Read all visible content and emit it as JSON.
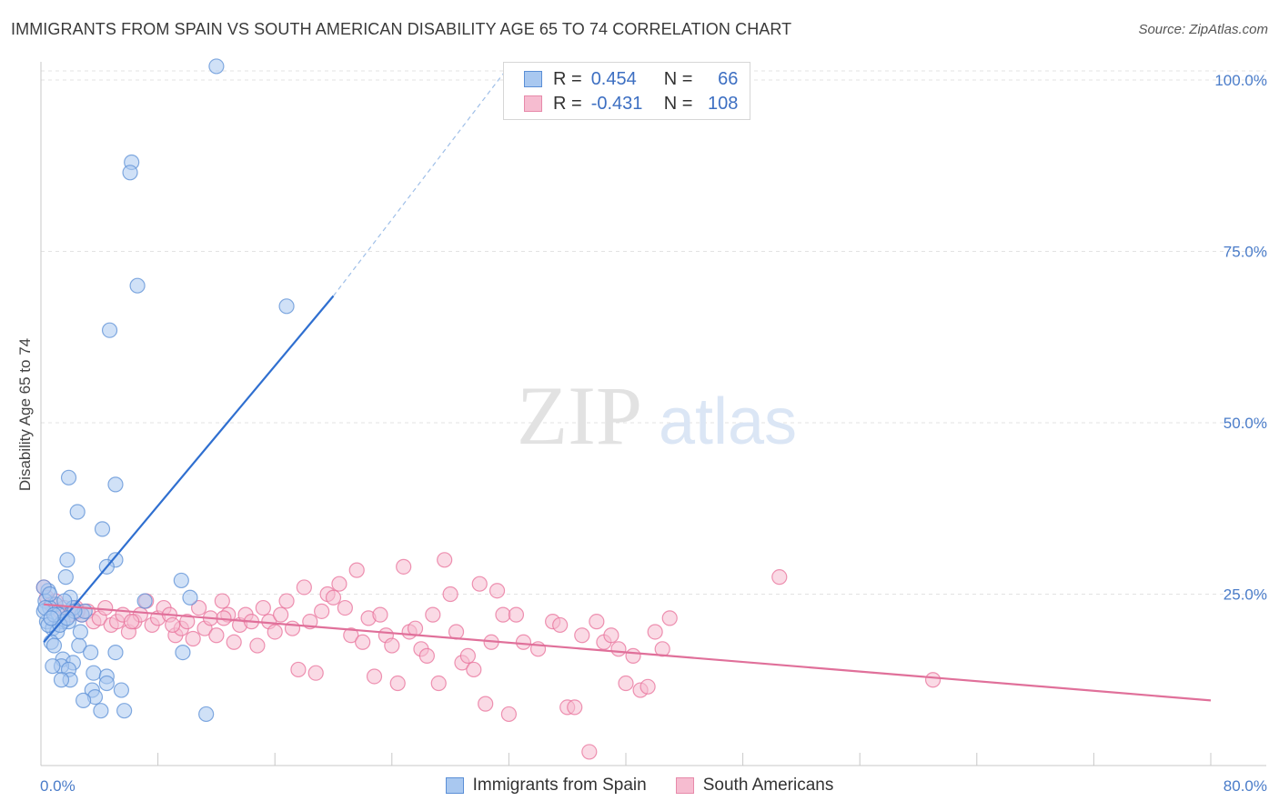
{
  "header": {
    "title": "IMMIGRANTS FROM SPAIN VS SOUTH AMERICAN DISABILITY AGE 65 TO 74 CORRELATION CHART",
    "source": "Source: ZipAtlas.com"
  },
  "watermark": {
    "zip": "ZIP",
    "atlas": "atlas"
  },
  "legend_top": {
    "rows": [
      {
        "r_label": "R =",
        "r_value": "0.454",
        "n_label": "N =",
        "n_value": "66",
        "color": "#a9c8f0",
        "border": "#5b8fd6"
      },
      {
        "r_label": "R =",
        "r_value": "-0.431",
        "n_label": "N =",
        "n_value": "108",
        "color": "#f6bcd0",
        "border": "#e78aaa"
      }
    ]
  },
  "chart_data": {
    "type": "scatter",
    "title": "IMMIGRANTS FROM SPAIN VS SOUTH AMERICAN DISABILITY AGE 65 TO 74 CORRELATION CHART",
    "xlabel": "",
    "ylabel": "Disability Age 65 to 74",
    "xlim": [
      0,
      80
    ],
    "ylim": [
      0,
      100
    ],
    "x_tick_labels": [
      "0.0%",
      "80.0%"
    ],
    "y_ticks": [
      25,
      50,
      75,
      100
    ],
    "y_tick_labels": [
      "25.0%",
      "50.0%",
      "75.0%",
      "100.0%"
    ],
    "grid": true,
    "legend_position": "bottom",
    "series": [
      {
        "name": "Immigrants from Spain",
        "color": "#5b8fd6",
        "fill": "#a9c8f0",
        "trend": {
          "x": [
            0.2,
            20
          ],
          "y": [
            18,
            68.5
          ],
          "dashed_to": [
            32,
            102
          ]
        },
        "points": [
          [
            12,
            102
          ],
          [
            6.2,
            88
          ],
          [
            6.1,
            86.5
          ],
          [
            6.6,
            70
          ],
          [
            16.8,
            67
          ],
          [
            4.7,
            63.5
          ],
          [
            1.9,
            42
          ],
          [
            5.1,
            41
          ],
          [
            2.5,
            37
          ],
          [
            4.2,
            34.5
          ],
          [
            1.8,
            30
          ],
          [
            5.1,
            30
          ],
          [
            4.5,
            29
          ],
          [
            1.7,
            27.5
          ],
          [
            9.6,
            27
          ],
          [
            10.2,
            24.5
          ],
          [
            7.1,
            24
          ],
          [
            0.5,
            25.5
          ],
          [
            0.3,
            24
          ],
          [
            1.0,
            23.5
          ],
          [
            2.0,
            24.5
          ],
          [
            0.6,
            23
          ],
          [
            1.2,
            22
          ],
          [
            1.5,
            21
          ],
          [
            0.4,
            21
          ],
          [
            0.8,
            20
          ],
          [
            1.1,
            19.5
          ],
          [
            1.9,
            21
          ],
          [
            2.8,
            22
          ],
          [
            3.0,
            22.5
          ],
          [
            2.2,
            23
          ],
          [
            0.2,
            22.5
          ],
          [
            0.5,
            20.5
          ],
          [
            1.3,
            20.5
          ],
          [
            0.7,
            18
          ],
          [
            0.9,
            17.5
          ],
          [
            2.6,
            17.5
          ],
          [
            3.4,
            16.5
          ],
          [
            5.1,
            16.5
          ],
          [
            9.7,
            16.5
          ],
          [
            1.5,
            15.5
          ],
          [
            2.2,
            15
          ],
          [
            1.4,
            14.5
          ],
          [
            1.9,
            14
          ],
          [
            0.8,
            14.5
          ],
          [
            3.6,
            13.5
          ],
          [
            4.5,
            13
          ],
          [
            2.0,
            12.5
          ],
          [
            1.4,
            12.5
          ],
          [
            4.5,
            12
          ],
          [
            5.5,
            11
          ],
          [
            3.5,
            11
          ],
          [
            3.7,
            10
          ],
          [
            2.9,
            9.5
          ],
          [
            5.7,
            8
          ],
          [
            11.3,
            7.5
          ],
          [
            4.1,
            8
          ],
          [
            0.2,
            26
          ],
          [
            0.6,
            25
          ],
          [
            0.3,
            23
          ],
          [
            2.3,
            22.5
          ],
          [
            1.6,
            24
          ],
          [
            0.9,
            22
          ],
          [
            2.7,
            19.5
          ],
          [
            0.7,
            21.5
          ],
          [
            1.8,
            21.5
          ]
        ]
      },
      {
        "name": "South Americans",
        "color": "#e8709a",
        "fill": "#f6bcd0",
        "trend": {
          "x": [
            0.2,
            80
          ],
          "y": [
            23.5,
            9.5
          ]
        },
        "points": [
          [
            0.2,
            26
          ],
          [
            0.4,
            24.5
          ],
          [
            0.7,
            23.5
          ],
          [
            1.0,
            24
          ],
          [
            1.3,
            22.5
          ],
          [
            1.6,
            23
          ],
          [
            2.0,
            22
          ],
          [
            2.4,
            23
          ],
          [
            2.8,
            22
          ],
          [
            3.2,
            22.5
          ],
          [
            3.6,
            21
          ],
          [
            4.0,
            21.5
          ],
          [
            4.4,
            23
          ],
          [
            4.8,
            20.5
          ],
          [
            5.2,
            21
          ],
          [
            5.6,
            22
          ],
          [
            6.0,
            19.5
          ],
          [
            6.4,
            21
          ],
          [
            6.8,
            22
          ],
          [
            7.2,
            24
          ],
          [
            7.6,
            20.5
          ],
          [
            8.0,
            21.5
          ],
          [
            8.4,
            23
          ],
          [
            8.8,
            22
          ],
          [
            9.2,
            19
          ],
          [
            9.6,
            20
          ],
          [
            10.0,
            21
          ],
          [
            10.4,
            18.5
          ],
          [
            10.8,
            23
          ],
          [
            11.2,
            20
          ],
          [
            11.6,
            21.5
          ],
          [
            12.0,
            19
          ],
          [
            12.4,
            24
          ],
          [
            12.8,
            22
          ],
          [
            13.2,
            18
          ],
          [
            13.6,
            20.5
          ],
          [
            14.0,
            22
          ],
          [
            14.4,
            21
          ],
          [
            14.8,
            17.5
          ],
          [
            15.2,
            23
          ],
          [
            15.6,
            21
          ],
          [
            16.0,
            19.5
          ],
          [
            16.4,
            22
          ],
          [
            16.8,
            24
          ],
          [
            17.2,
            20
          ],
          [
            17.6,
            14
          ],
          [
            18.0,
            26
          ],
          [
            18.4,
            21
          ],
          [
            18.8,
            13.5
          ],
          [
            19.2,
            22.5
          ],
          [
            19.6,
            25
          ],
          [
            20.0,
            24.5
          ],
          [
            20.4,
            26.5
          ],
          [
            20.8,
            23
          ],
          [
            21.2,
            19
          ],
          [
            21.6,
            28.5
          ],
          [
            22.0,
            18
          ],
          [
            22.4,
            21.5
          ],
          [
            22.8,
            13
          ],
          [
            23.2,
            22
          ],
          [
            23.6,
            19
          ],
          [
            24.0,
            17.5
          ],
          [
            24.4,
            12
          ],
          [
            24.8,
            29
          ],
          [
            25.2,
            19.5
          ],
          [
            25.6,
            20
          ],
          [
            26.0,
            17
          ],
          [
            26.4,
            16
          ],
          [
            26.8,
            22
          ],
          [
            27.2,
            12
          ],
          [
            27.6,
            30
          ],
          [
            28.0,
            25
          ],
          [
            28.4,
            19.5
          ],
          [
            28.8,
            15
          ],
          [
            29.2,
            16
          ],
          [
            29.6,
            14
          ],
          [
            30.0,
            26.5
          ],
          [
            30.4,
            9
          ],
          [
            30.8,
            18
          ],
          [
            31.2,
            25.5
          ],
          [
            31.6,
            22
          ],
          [
            32.0,
            7.5
          ],
          [
            32.5,
            22
          ],
          [
            33.0,
            18
          ],
          [
            34.0,
            17
          ],
          [
            35.0,
            21
          ],
          [
            35.5,
            20.5
          ],
          [
            36.0,
            8.5
          ],
          [
            36.5,
            8.5
          ],
          [
            37.0,
            19
          ],
          [
            37.5,
            2
          ],
          [
            38.0,
            21
          ],
          [
            38.5,
            18
          ],
          [
            39.0,
            19
          ],
          [
            39.5,
            17
          ],
          [
            40.0,
            12
          ],
          [
            40.5,
            16
          ],
          [
            41.0,
            11
          ],
          [
            41.5,
            11.5
          ],
          [
            42.0,
            19.5
          ],
          [
            42.5,
            17
          ],
          [
            43.0,
            21.5
          ],
          [
            50.5,
            27.5
          ],
          [
            61.0,
            12.5
          ],
          [
            2.5,
            22.5
          ],
          [
            6.2,
            21
          ],
          [
            9.0,
            20.5
          ],
          [
            12.5,
            21.5
          ]
        ]
      }
    ]
  }
}
